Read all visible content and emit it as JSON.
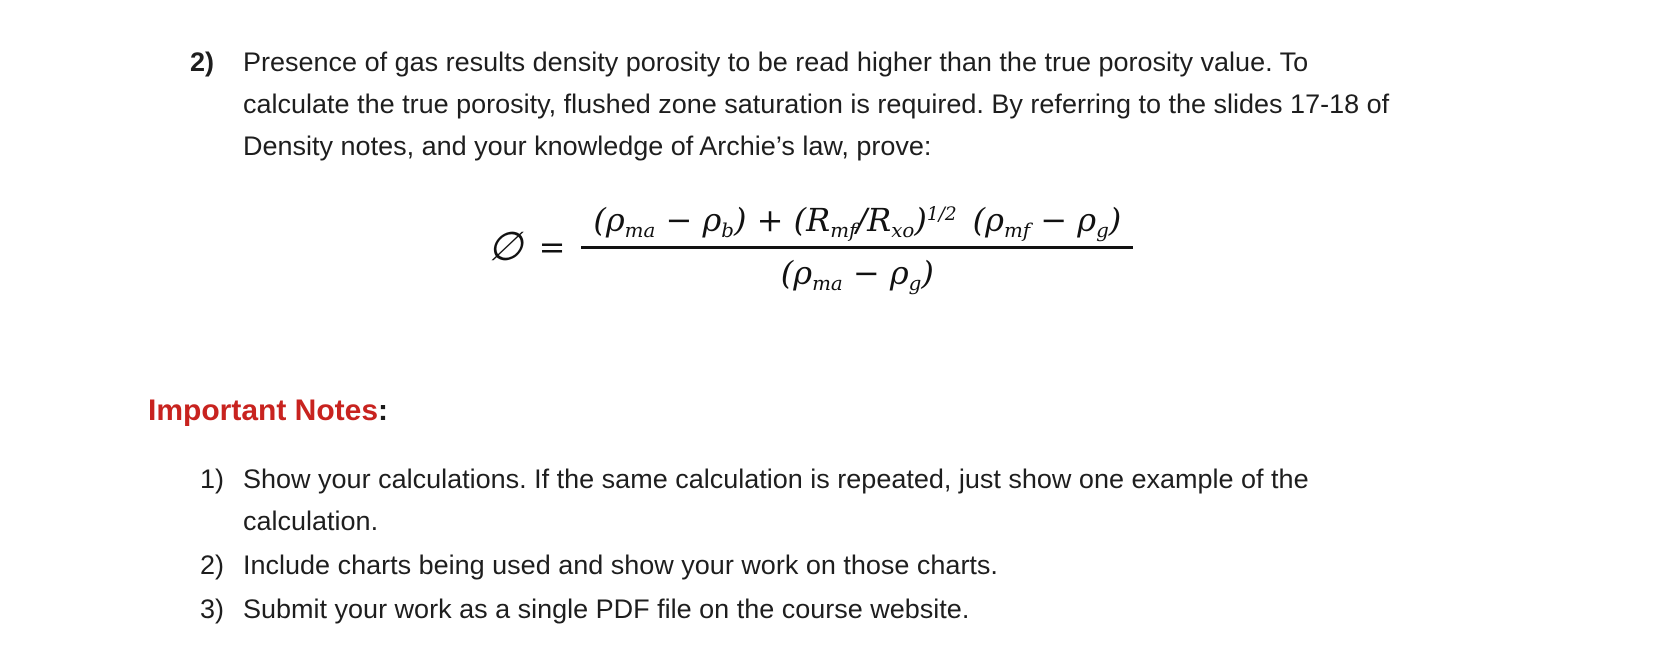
{
  "page": {
    "background": "#ffffff",
    "text_color": "#1e1e1e",
    "accent_red": "#c8231f"
  },
  "question": {
    "marker": "2)",
    "text": "Presence of gas results density porosity to be read higher than the true porosity value. To calculate the true porosity, flushed zone saturation is required. By referring to the slides 17-18 of Density notes, and your knowledge of Archie’s law, prove:"
  },
  "formula": {
    "phi": "∅",
    "equals": "=",
    "plain_text": "∅ = [(ρma − ρb) + (Rmf/Rxo)^(1/2) (ρmf − ρg)] / (ρma − ρg)",
    "numerator_tokens": [
      {
        "t": "("
      },
      {
        "t": "ρ",
        "s": "ma"
      },
      {
        "t": " − "
      },
      {
        "t": "ρ",
        "s": "b"
      },
      {
        "t": ") + ("
      },
      {
        "t": "R",
        "s": "mf"
      },
      {
        "t": "/"
      },
      {
        "t": "R",
        "s": "xo"
      },
      {
        "t": ")",
        "u": "1/2"
      },
      {
        "t": " ("
      },
      {
        "t": "ρ",
        "s": "mf"
      },
      {
        "t": " − "
      },
      {
        "t": "ρ",
        "s": "g"
      },
      {
        "t": ")"
      }
    ],
    "denominator_tokens": [
      {
        "t": "("
      },
      {
        "t": "ρ",
        "s": "ma"
      },
      {
        "t": " − "
      },
      {
        "t": "ρ",
        "s": "g"
      },
      {
        "t": ")"
      }
    ]
  },
  "notes": {
    "heading": "Important Notes",
    "colon": ":",
    "items": [
      {
        "marker": "1)",
        "text": "Show your calculations. If the same calculation is repeated, just show one example of the calculation."
      },
      {
        "marker": "2)",
        "text": "Include charts being used and show your work on those charts."
      },
      {
        "marker": "3)",
        "text": "Submit your work as a single PDF file on the course website."
      }
    ]
  }
}
